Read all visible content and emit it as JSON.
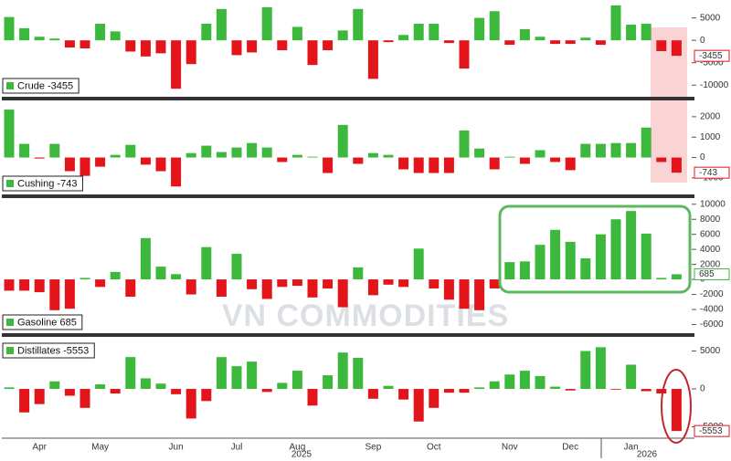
{
  "chart_data": [
    {
      "type": "bar",
      "name": "Crude -3455",
      "legend": "lower left",
      "up_color": "#3cb83c",
      "down_color": "#e3141a",
      "values": [
        5200,
        2700,
        800,
        400,
        -1600,
        -1800,
        3700,
        2000,
        -2500,
        -3600,
        -2900,
        -10800,
        -5300,
        3700,
        7000,
        -3300,
        -2700,
        7400,
        -2200,
        3000,
        -5500,
        -2200,
        2200,
        7000,
        -8600,
        -400,
        1200,
        3700,
        3700,
        -600,
        -6300,
        5000,
        6500,
        -1000,
        2500,
        800,
        -800,
        -800,
        600,
        -1000,
        7800,
        3500,
        3700,
        -2400,
        -3455
      ],
      "ylim": [
        -13000,
        9000
      ],
      "yticks": [
        5000,
        0,
        -5000,
        -10000
      ]
    },
    {
      "type": "bar",
      "name": "Cushing -743",
      "legend": "lower left",
      "up_color": "#3cb83c",
      "down_color": "#e3141a",
      "values": [
        2350,
        670,
        -50,
        670,
        -670,
        -900,
        -450,
        130,
        620,
        -350,
        -670,
        -1420,
        220,
        580,
        270,
        490,
        710,
        490,
        -220,
        130,
        40,
        -760,
        1600,
        -310,
        220,
        130,
        -580,
        -760,
        -760,
        -760,
        1330,
        440,
        -580,
        40,
        -310,
        360,
        -220,
        -620,
        670,
        670,
        710,
        710,
        1470,
        -220,
        -743
      ],
      "ylim": [
        -1900,
        2800
      ],
      "yticks": [
        2000,
        1000,
        0,
        -1000
      ]
    },
    {
      "type": "bar",
      "name": "Gasoline 685",
      "legend": "lower left",
      "up_color": "#3cb83c",
      "down_color": "#e3141a",
      "values": [
        -1500,
        -1500,
        -1700,
        -4100,
        -3900,
        200,
        -1000,
        1000,
        -2300,
        5500,
        1700,
        700,
        -2000,
        4300,
        -2300,
        3400,
        -1300,
        -2600,
        -1000,
        -850,
        -2400,
        -1200,
        -3700,
        1600,
        -2100,
        -700,
        -1000,
        4100,
        -1200,
        -2700,
        -3900,
        -4100,
        -1200,
        2300,
        2400,
        4600,
        6600,
        5000,
        2800,
        6000,
        8000,
        9100,
        6100,
        200,
        685
      ],
      "ylim": [
        -7400,
        10700
      ],
      "yticks": [
        10000,
        8000,
        6000,
        4000,
        2000,
        0,
        -2000,
        -4000,
        -6000
      ]
    },
    {
      "type": "bar",
      "name": "Distillates -5553",
      "legend": "upper left",
      "up_color": "#3cb83c",
      "down_color": "#e3141a",
      "values": [
        200,
        -3100,
        -2000,
        1000,
        -900,
        -2500,
        600,
        -600,
        4200,
        1400,
        700,
        -700,
        -3900,
        -1600,
        4200,
        3000,
        3600,
        -400,
        800,
        2400,
        -2200,
        1800,
        4800,
        4100,
        -1300,
        400,
        -1400,
        -4300,
        -2500,
        -500,
        -500,
        200,
        1000,
        1900,
        2400,
        1700,
        300,
        -200,
        5000,
        5500,
        -100,
        3200,
        -300,
        -600,
        -5553
      ],
      "ylim": [
        -6500,
        6750
      ],
      "yticks": [
        5000,
        0,
        -5000
      ],
      "categories": [
        null,
        null,
        "Apr",
        null,
        null,
        null,
        "May",
        null,
        null,
        null,
        null,
        "Jun",
        null,
        null,
        null,
        "Jul",
        null,
        null,
        null,
        "Aug",
        null,
        null,
        null,
        null,
        "Sep",
        null,
        null,
        null,
        "Oct",
        null,
        null,
        null,
        null,
        "Nov",
        null,
        null,
        null,
        "Dec",
        null,
        null,
        null,
        "Jan",
        null,
        null,
        null
      ],
      "year_labels": [
        "2025",
        "2026"
      ]
    }
  ],
  "watermark": "VN COMMODITIES"
}
